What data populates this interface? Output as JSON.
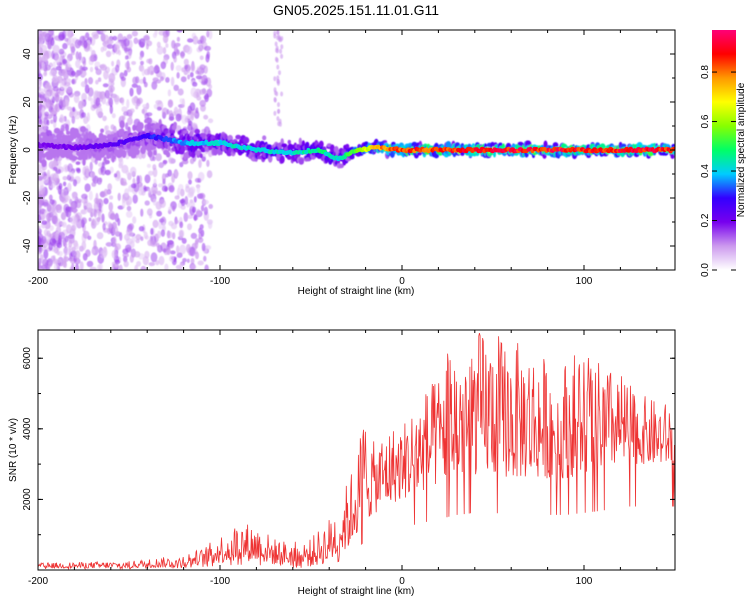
{
  "figure_title": "GN05.2025.151.11.01.G11",
  "chart_data": [
    {
      "type": "heatmap",
      "title": "GN05.2025.151.11.01.G11",
      "xlabel": "Height of straight line (km)",
      "ylabel": "Frequency (Hz)",
      "xlim": [
        -200,
        150
      ],
      "ylim": [
        -50,
        50
      ],
      "x_ticks": [
        -200,
        -100,
        0,
        100
      ],
      "y_ticks": [
        -40,
        -20,
        0,
        20,
        40
      ],
      "colorbar": {
        "label": "Normalized spectral amplitude",
        "range": [
          0,
          0.97
        ],
        "ticks": [
          0.0,
          0.2,
          0.4,
          0.6,
          0.8
        ],
        "colormap": [
          "#ffffff",
          "#cc99ee",
          "#7700ee",
          "#3300ff",
          "#00ccff",
          "#00ff66",
          "#88ff00",
          "#ffff00",
          "#ff9900",
          "#ff0000",
          "#ff0077"
        ]
      },
      "ridge": {
        "x": [
          -200,
          -180,
          -160,
          -140,
          -120,
          -100,
          -80,
          -60,
          -45,
          -35,
          -25,
          -15,
          0,
          50,
          100,
          150
        ],
        "frequency": [
          2,
          1,
          2,
          6,
          3,
          3,
          0,
          -1,
          0,
          -4,
          0,
          1,
          0,
          0,
          0,
          0
        ],
        "amplitude": [
          0.2,
          0.22,
          0.25,
          0.3,
          0.4,
          0.45,
          0.45,
          0.45,
          0.5,
          0.45,
          0.6,
          0.8,
          0.9,
          0.95,
          0.95,
          0.95
        ]
      }
    },
    {
      "type": "line",
      "xlabel": "Height of straight line (km)",
      "ylabel": "SNR (10 * v/v)",
      "xlim": [
        -200,
        150
      ],
      "ylim": [
        0,
        6800
      ],
      "x_ticks": [
        -200,
        -100,
        0,
        100
      ],
      "y_ticks": [
        2000,
        4000,
        6000
      ],
      "color": "#ee3333",
      "envelope": {
        "x": [
          -200,
          -150,
          -125,
          -110,
          -100,
          -90,
          -80,
          -70,
          -60,
          -50,
          -40,
          -30,
          -25,
          -20,
          -15,
          -10,
          0,
          10,
          20,
          25,
          30,
          40,
          50,
          60,
          70,
          80,
          90,
          100,
          110,
          120,
          130,
          140,
          150
        ],
        "low": [
          50,
          60,
          80,
          150,
          200,
          250,
          250,
          150,
          120,
          100,
          200,
          600,
          1000,
          1400,
          1600,
          1800,
          2000,
          2200,
          2400,
          2500,
          2600,
          2700,
          2700,
          2600,
          2600,
          2600,
          2600,
          2700,
          2800,
          3000,
          3000,
          3000,
          3000
        ],
        "high": [
          200,
          250,
          400,
          600,
          1000,
          1400,
          1300,
          900,
          800,
          900,
          1500,
          2500,
          3300,
          4800,
          3500,
          4000,
          4200,
          5000,
          5500,
          6700,
          6500,
          6800,
          6800,
          6500,
          6400,
          6000,
          6000,
          6500,
          5800,
          5600,
          5000,
          4800,
          4700
        ]
      }
    }
  ]
}
